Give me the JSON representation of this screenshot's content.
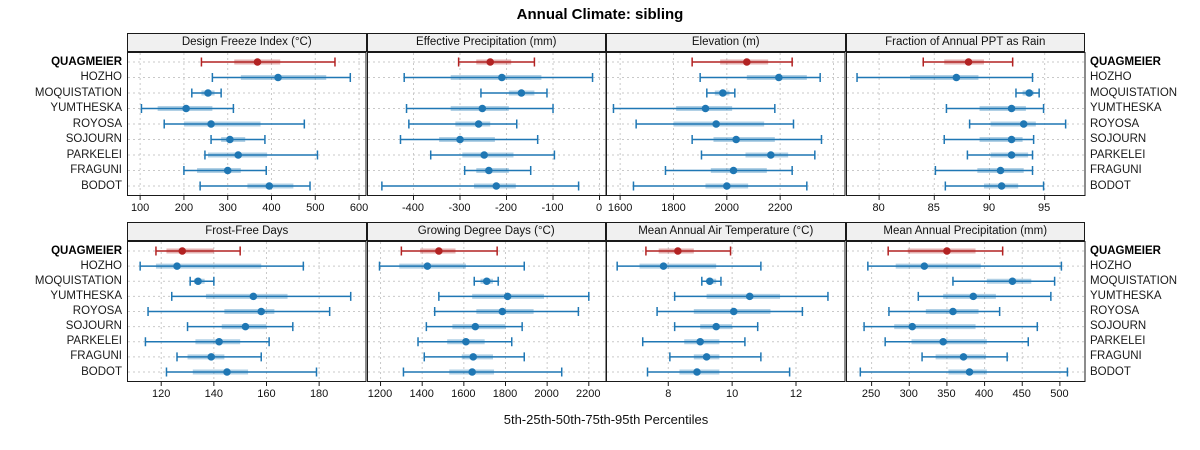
{
  "title": "Annual Climate: sibling",
  "caption": "5th-25th-50th-75th-95th Percentiles",
  "colors": {
    "highlight": "#b22222",
    "normal": "#1f77b4",
    "grid": "#c9c9c9",
    "panel_border": "#1a1a1a",
    "header_bg": "#f0f0f0",
    "text": "#111111"
  },
  "chart_data": {
    "type": "dotplot-percentiles",
    "title": "Annual Climate: sibling",
    "xlabel": "5th-25th-50th-75th-95th Percentiles",
    "percentile_labels": [
      "5th",
      "25th",
      "50th",
      "75th",
      "95th"
    ],
    "legend_position": "none",
    "grid": "dashed",
    "highlight_station": "QUAGMEIER",
    "stations": [
      "QUAGMEIER",
      "HOZHO",
      "MOQUISTATION",
      "YUMTHESKA",
      "ROYOSA",
      "SOJOURN",
      "PARKELEI",
      "FRAGUNI",
      "BODOT"
    ],
    "panels": [
      {
        "title": "Design Freeze Index (°C)",
        "row": 0,
        "col": 0,
        "xlim": [
          70,
          617
        ],
        "ticks": [
          100,
          200,
          300,
          400,
          500,
          600
        ],
        "gridlines": [
          100,
          200,
          300,
          400,
          500,
          600
        ],
        "values": {
          "QUAGMEIER": [
            240,
            315,
            368,
            420,
            545
          ],
          "HOZHO": [
            265,
            330,
            415,
            525,
            580
          ],
          "MOQUISTATION": [
            218,
            240,
            255,
            270,
            285
          ],
          "YUMTHESKA": [
            103,
            140,
            205,
            265,
            313
          ],
          "ROYOSA": [
            155,
            200,
            262,
            375,
            475
          ],
          "SOJOURN": [
            262,
            285,
            305,
            340,
            385
          ],
          "PARKELEI": [
            248,
            255,
            324,
            390,
            505
          ],
          "FRAGUNI": [
            200,
            230,
            300,
            330,
            388
          ],
          "BODOT": [
            237,
            345,
            395,
            450,
            488
          ]
        }
      },
      {
        "title": "Effective Precipitation (mm)",
        "row": 0,
        "col": 1,
        "xlim": [
          -500,
          15
        ],
        "ticks": [
          -400,
          -300,
          -200,
          -100,
          0
        ],
        "gridlines": [
          -400,
          -300,
          -200,
          -100,
          0
        ],
        "values": {
          "QUAGMEIER": [
            -303,
            -265,
            -235,
            -190,
            -140
          ],
          "HOZHO": [
            -420,
            -320,
            -210,
            -125,
            -15
          ],
          "MOQUISTATION": [
            -255,
            -195,
            -168,
            -140,
            -113
          ],
          "YUMTHESKA": [
            -415,
            -320,
            -252,
            -195,
            -100
          ],
          "ROYOSA": [
            -410,
            -310,
            -260,
            -235,
            -178
          ],
          "SOJOURN": [
            -428,
            -345,
            -300,
            -225,
            -133
          ],
          "PARKELEI": [
            -363,
            -295,
            -248,
            -185,
            -97
          ],
          "FRAGUNI": [
            -290,
            -265,
            -238,
            -195,
            -148
          ],
          "BODOT": [
            -468,
            -270,
            -222,
            -180,
            -45
          ]
        }
      },
      {
        "title": "Elevation (m)",
        "row": 0,
        "col": 2,
        "xlim": [
          1547,
          2445
        ],
        "ticks": [
          1600,
          1800,
          2000,
          2200
        ],
        "gridlines": [
          1600,
          1800,
          2000,
          2200,
          2400
        ],
        "values": {
          "QUAGMEIER": [
            1870,
            1975,
            2075,
            2155,
            2245
          ],
          "HOZHO": [
            1900,
            2075,
            2195,
            2300,
            2350
          ],
          "MOQUISTATION": [
            1925,
            1955,
            1985,
            2010,
            2030
          ],
          "YUMTHESKA": [
            1575,
            1810,
            1920,
            2020,
            2180
          ],
          "ROYOSA": [
            1660,
            1800,
            1960,
            2140,
            2250
          ],
          "SOJOURN": [
            1870,
            1950,
            2035,
            2180,
            2355
          ],
          "PARKELEI": [
            1905,
            2070,
            2165,
            2230,
            2330
          ],
          "FRAGUNI": [
            1770,
            1940,
            2025,
            2150,
            2245
          ],
          "BODOT": [
            1650,
            1920,
            2000,
            2080,
            2300
          ]
        }
      },
      {
        "title": "Fraction of Annual PPT as Rain",
        "row": 0,
        "col": 3,
        "xlim": [
          77,
          98.7
        ],
        "ticks": [
          80,
          85,
          90,
          95
        ],
        "gridlines": [
          80,
          85,
          90,
          95
        ],
        "values": {
          "QUAGMEIER": [
            84,
            85.9,
            88.1,
            89.5,
            92.1
          ],
          "HOZHO": [
            78,
            82.8,
            87,
            89,
            93.9
          ],
          "MOQUISTATION": [
            92.4,
            93,
            93.6,
            94,
            94.5
          ],
          "YUMTHESKA": [
            86.1,
            89.1,
            92,
            93.3,
            94.9
          ],
          "ROYOSA": [
            88.2,
            90.1,
            93.1,
            94.2,
            96.9
          ],
          "SOJOURN": [
            85.9,
            89.1,
            92,
            93,
            94
          ],
          "PARKELEI": [
            88,
            90.1,
            92,
            93.5,
            93.9
          ],
          "FRAGUNI": [
            85.1,
            88.9,
            91,
            93.1,
            93.9
          ],
          "BODOT": [
            86,
            89.5,
            91.1,
            92.6,
            94.9
          ]
        }
      },
      {
        "title": "Frost-Free Days",
        "row": 1,
        "col": 0,
        "xlim": [
          107,
          198
        ],
        "ticks": [
          120,
          140,
          160,
          180
        ],
        "gridlines": [
          120,
          140,
          160,
          180
        ],
        "values": {
          "QUAGMEIER": [
            118,
            122,
            128,
            140,
            150
          ],
          "HOZHO": [
            112,
            118,
            126,
            158,
            174
          ],
          "MOQUISTATION": [
            131,
            132.5,
            134,
            136.5,
            140
          ],
          "YUMTHESKA": [
            124,
            137,
            155,
            168,
            192
          ],
          "ROYOSA": [
            115,
            144,
            158,
            163,
            184
          ],
          "SOJOURN": [
            130,
            143,
            152,
            160,
            170
          ],
          "PARKELEI": [
            114,
            133,
            142,
            150,
            161
          ],
          "FRAGUNI": [
            126,
            130,
            139,
            144,
            158
          ],
          "BODOT": [
            122,
            132,
            145,
            153,
            179
          ]
        }
      },
      {
        "title": "Growing Degree Days (°C)",
        "row": 1,
        "col": 1,
        "xlim": [
          1135,
          2285
        ],
        "ticks": [
          1200,
          1400,
          1600,
          1800,
          2000,
          2200
        ],
        "gridlines": [
          1200,
          1400,
          1600,
          1800,
          2000,
          2200
        ],
        "values": {
          "QUAGMEIER": [
            1300,
            1390,
            1480,
            1560,
            1760
          ],
          "HOZHO": [
            1195,
            1290,
            1425,
            1610,
            1890
          ],
          "MOQUISTATION": [
            1650,
            1680,
            1710,
            1740,
            1765
          ],
          "YUMTHESKA": [
            1480,
            1640,
            1810,
            1985,
            2200
          ],
          "ROYOSA": [
            1460,
            1660,
            1785,
            1935,
            2150
          ],
          "SOJOURN": [
            1420,
            1545,
            1655,
            1800,
            1880
          ],
          "PARKELEI": [
            1380,
            1520,
            1610,
            1700,
            1830
          ],
          "FRAGUNI": [
            1410,
            1590,
            1645,
            1740,
            1890
          ],
          "BODOT": [
            1310,
            1530,
            1640,
            1745,
            2070
          ]
        }
      },
      {
        "title": "Mean Annual Air Temperature (°C)",
        "row": 1,
        "col": 2,
        "xlim": [
          6.05,
          13.55
        ],
        "ticks": [
          8,
          10,
          12
        ],
        "gridlines": [
          8,
          10,
          12
        ],
        "values": {
          "QUAGMEIER": [
            7.3,
            7.7,
            8.3,
            8.8,
            9.95
          ],
          "HOZHO": [
            6.4,
            7.1,
            7.85,
            9.5,
            10.9
          ],
          "MOQUISTATION": [
            9.05,
            9.2,
            9.3,
            9.5,
            9.65
          ],
          "YUMTHESKA": [
            8.2,
            9.2,
            10.55,
            11.5,
            13
          ],
          "ROYOSA": [
            7.65,
            8.8,
            10.05,
            11.2,
            12.2
          ],
          "SOJOURN": [
            8.2,
            9,
            9.5,
            10,
            10.8
          ],
          "PARKELEI": [
            7.2,
            8.5,
            9,
            9.6,
            10.4
          ],
          "FRAGUNI": [
            8.05,
            8.8,
            9.2,
            9.6,
            10.9
          ],
          "BODOT": [
            7.35,
            8.35,
            8.9,
            9.6,
            11.8
          ]
        }
      },
      {
        "title": "Mean Annual Precipitation (mm)",
        "row": 1,
        "col": 3,
        "xlim": [
          216,
          534
        ],
        "ticks": [
          250,
          300,
          350,
          400,
          450,
          500
        ],
        "gridlines": [
          250,
          300,
          350,
          400,
          450,
          500
        ],
        "values": {
          "QUAGMEIER": [
            272,
            298,
            350,
            388,
            424
          ],
          "HOZHO": [
            245,
            282,
            320,
            395,
            502
          ],
          "MOQUISTATION": [
            358,
            403,
            437,
            462,
            493
          ],
          "YUMTHESKA": [
            312,
            345,
            385,
            415,
            488
          ],
          "ROYOSA": [
            273,
            322,
            358,
            392,
            420
          ],
          "SOJOURN": [
            240,
            280,
            304,
            388,
            470
          ],
          "PARKELEI": [
            268,
            303,
            345,
            403,
            458
          ],
          "FRAGUNI": [
            317,
            335,
            372,
            402,
            430
          ],
          "BODOT": [
            235,
            352,
            380,
            403,
            510
          ]
        }
      }
    ]
  }
}
